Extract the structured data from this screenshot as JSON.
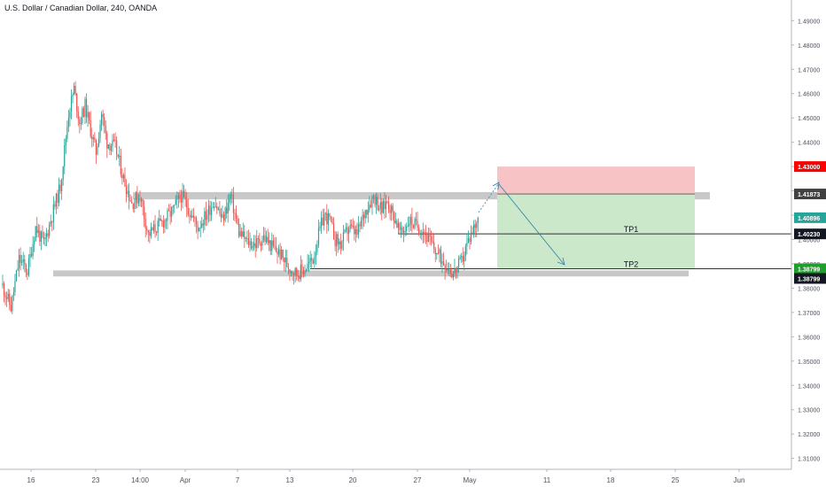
{
  "header": {
    "title": "U.S. Dollar / Canadian Dollar, 240, OANDA"
  },
  "colors": {
    "up": "#26a69a",
    "down": "#ef5350",
    "zone": "#c8c8c8",
    "stop": "#f7c3c5",
    "target": "#cbe8cb",
    "arrow": "#2a7fa8",
    "label_red": "#ff0000",
    "label_dark": "#404040",
    "label_teal": "#26a69a",
    "label_black": "#131722",
    "label_green": "#1f9e2c"
  },
  "chart_data": {
    "type": "candlestick",
    "title": "U.S. Dollar / Canadian Dollar, 240, OANDA",
    "ylim": [
      1.3055,
      1.4985
    ],
    "y_ticks": [
      "1.31000",
      "1.32000",
      "1.33000",
      "1.34000",
      "1.35000",
      "1.36000",
      "1.37000",
      "1.38000",
      "1.39000",
      "1.40000",
      "1.41000",
      "1.42000",
      "1.43000",
      "1.44000",
      "1.45000",
      "1.46000",
      "1.47000",
      "1.48000",
      "1.49000"
    ],
    "x_ticks": [
      "16",
      "23",
      "14:00",
      "Apr",
      "7",
      "13",
      "20",
      "27",
      "May",
      "11",
      "18",
      "25",
      "Jun"
    ],
    "grid": false,
    "price_labels": [
      {
        "text": "1.43000",
        "value": 1.43,
        "color": "label_red"
      },
      {
        "text": "1.41873",
        "value": 1.41873,
        "color": "label_dark"
      },
      {
        "text": "1.40896",
        "value": 1.40896,
        "color": "label_teal"
      },
      {
        "text": "1.40230",
        "value": 1.4023,
        "color": "label_black"
      },
      {
        "text": "1.38799",
        "value": 1.38799,
        "color": "label_green"
      },
      {
        "text": "1.38799",
        "value": 1.38799,
        "color": "label_black"
      }
    ],
    "targets": [
      {
        "label": "TP1",
        "value": 1.4023
      },
      {
        "label": "TP2",
        "value": 1.38799
      }
    ],
    "zones": [
      {
        "name": "resistance",
        "low": 1.4165,
        "high": 1.4195
      },
      {
        "name": "support",
        "low": 1.3848,
        "high": 1.3873
      }
    ],
    "position": {
      "entry": 1.41873,
      "stop": 1.43,
      "target": 1.38799
    },
    "series_path": [
      [
        0,
        1.381
      ],
      [
        6,
        1.372
      ],
      [
        12,
        1.392
      ],
      [
        18,
        1.387
      ],
      [
        24,
        1.405
      ],
      [
        30,
        1.398
      ],
      [
        36,
        1.41
      ],
      [
        42,
        1.422
      ],
      [
        48,
        1.452
      ],
      [
        52,
        1.462
      ],
      [
        56,
        1.448
      ],
      [
        60,
        1.455
      ],
      [
        64,
        1.445
      ],
      [
        68,
        1.436
      ],
      [
        72,
        1.452
      ],
      [
        76,
        1.44
      ],
      [
        82,
        1.438
      ],
      [
        88,
        1.425
      ],
      [
        94,
        1.415
      ],
      [
        100,
        1.418
      ],
      [
        106,
        1.402
      ],
      [
        112,
        1.405
      ],
      [
        118,
        1.408
      ],
      [
        124,
        1.412
      ],
      [
        130,
        1.418
      ],
      [
        136,
        1.412
      ],
      [
        142,
        1.405
      ],
      [
        148,
        1.41
      ],
      [
        154,
        1.416
      ],
      [
        160,
        1.408
      ],
      [
        166,
        1.418
      ],
      [
        172,
        1.403
      ],
      [
        178,
        1.399
      ],
      [
        184,
        1.398
      ],
      [
        190,
        1.401
      ],
      [
        196,
        1.397
      ],
      [
        202,
        1.394
      ],
      [
        208,
        1.389
      ],
      [
        214,
        1.386
      ],
      [
        220,
        1.388
      ],
      [
        226,
        1.392
      ],
      [
        230,
        1.402
      ],
      [
        234,
        1.41
      ],
      [
        238,
        1.408
      ],
      [
        242,
        1.4
      ],
      [
        246,
        1.398
      ],
      [
        252,
        1.405
      ],
      [
        258,
        1.402
      ],
      [
        264,
        1.412
      ],
      [
        270,
        1.418
      ],
      [
        276,
        1.412
      ],
      [
        280,
        1.416
      ],
      [
        286,
        1.408
      ],
      [
        290,
        1.402
      ],
      [
        296,
        1.408
      ],
      [
        300,
        1.406
      ],
      [
        306,
        1.404
      ],
      [
        312,
        1.398
      ],
      [
        318,
        1.393
      ],
      [
        324,
        1.389
      ],
      [
        328,
        1.386
      ],
      [
        334,
        1.391
      ],
      [
        338,
        1.398
      ],
      [
        342,
        1.404
      ],
      [
        346,
        1.409
      ]
    ]
  }
}
